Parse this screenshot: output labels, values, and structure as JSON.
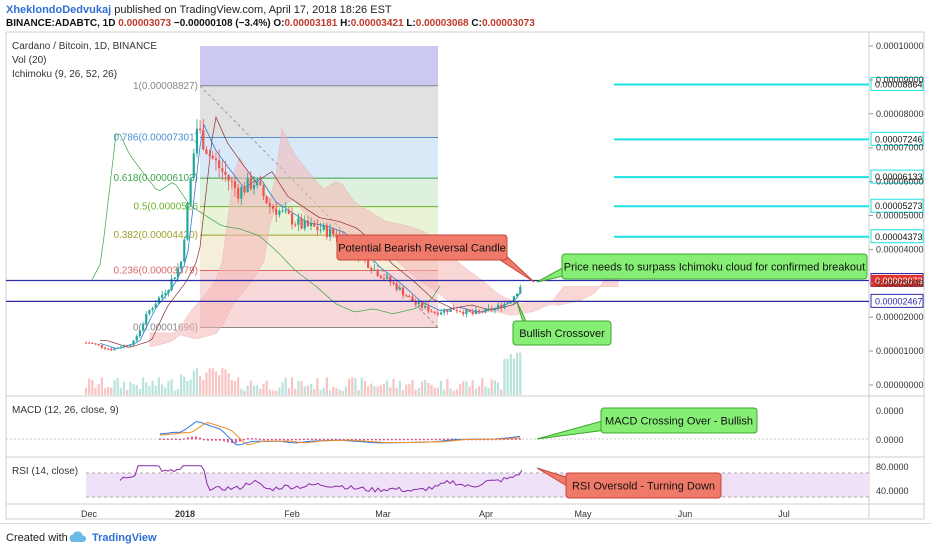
{
  "header": {
    "author": "XheklondoDedvukaj",
    "published": "published on TradingView.com, April 17, 2018 18:26 EST",
    "symbol_line": {
      "symbol": "BINANCE:ADABTC, 1D",
      "last": "0.00003073",
      "change": "−0.00000108 (−3.4%)",
      "o_label": "O:",
      "o": "0.00003181",
      "h_label": "H:",
      "h": "0.00003421",
      "l_label": "L:",
      "l": "0.00003068",
      "c_label": "C:",
      "c": "0.00003073"
    }
  },
  "legend": {
    "title": "Cardano / Bitcoin, 1D, BINANCE",
    "vol": "Vol (20)",
    "ichimoku": "Ichimoku (9, 26, 52, 26)",
    "macd": "MACD (12, 26, close, 9)",
    "rsi": "RSI (14, close)"
  },
  "chart_data": {
    "type": "candlestick",
    "x_axis": {
      "labels": [
        "Dec",
        "2018",
        "Feb",
        "Mar",
        "Apr",
        "May",
        "Jun",
        "Jul"
      ]
    },
    "price_axis": {
      "range": [
        0.0,
        0.0001
      ],
      "ticks": [
        "0.00010000",
        "0.00009000",
        "0.00008000",
        "0.00007000",
        "0.00006000",
        "0.00005000",
        "0.00004000",
        "0.00003000",
        "0.00002000",
        "0.00001000",
        "0.00000000"
      ]
    },
    "price_path": [
      [
        "2017-12-01",
        1.25e-05
      ],
      [
        "2017-12-08",
        1.05e-05
      ],
      [
        "2017-12-15",
        1.25e-05
      ],
      [
        "2017-12-20",
        2.2e-05
      ],
      [
        "2017-12-26",
        2.9e-05
      ],
      [
        "2017-12-30",
        3.6e-05
      ],
      [
        "2018-01-04",
        7.6e-05
      ],
      [
        "2018-01-08",
        6.8e-05
      ],
      [
        "2018-01-12",
        6.3e-05
      ],
      [
        "2018-01-17",
        5.7e-05
      ],
      [
        "2018-01-22",
        6e-05
      ],
      [
        "2018-01-27",
        5.3e-05
      ],
      [
        "2018-02-01",
        5e-05
      ],
      [
        "2018-02-06",
        4.7e-05
      ],
      [
        "2018-02-12",
        4.6e-05
      ],
      [
        "2018-02-18",
        4.4e-05
      ],
      [
        "2018-02-24",
        3.9e-05
      ],
      [
        "2018-03-01",
        3.4e-05
      ],
      [
        "2018-03-08",
        2.9e-05
      ],
      [
        "2018-03-14",
        2.4e-05
      ],
      [
        "2018-03-20",
        2.15e-05
      ],
      [
        "2018-03-26",
        2.25e-05
      ],
      [
        "2018-04-01",
        2.1e-05
      ],
      [
        "2018-04-08",
        2.25e-05
      ],
      [
        "2018-04-13",
        2.5e-05
      ],
      [
        "2018-04-17",
        3.07e-05
      ]
    ],
    "fibonacci": [
      {
        "level": "1",
        "price": 8.827e-05,
        "label": "1(0.00008827)"
      },
      {
        "level": "0.786",
        "price": 7.301e-05,
        "label": "0.786(0.00007301)"
      },
      {
        "level": "0.618",
        "price": 6.103e-05,
        "label": "0.618(0.00006103)"
      },
      {
        "level": "0.5",
        "price": 5.26e-05,
        "label": "0.5(0.0000526"
      },
      {
        "level": "0.382",
        "price": 4.42e-05,
        "label": "0.382(0.00004420)"
      },
      {
        "level": "0.236",
        "price": 3.379e-05,
        "label": "0.236(0.00003379)"
      },
      {
        "level": "0",
        "price": 1.696e-05,
        "label": "0(0.00001696)"
      }
    ],
    "horizontal_levels": [
      {
        "price": 3.083e-05,
        "label": "0.00003083",
        "color": "#2a2aa8"
      },
      {
        "price": 2.467e-05,
        "label": "0.00002467",
        "color": "#2a2aa8"
      }
    ],
    "target_levels": [
      {
        "price": 8.864e-05,
        "label": "0.00008864"
      },
      {
        "price": 7.246e-05,
        "label": "0.00007246"
      },
      {
        "price": 6.133e-05,
        "label": "0.00006133"
      },
      {
        "price": 5.273e-05,
        "label": "0.00005273"
      },
      {
        "price": 4.373e-05,
        "label": "0.00004373"
      }
    ],
    "last_price_label": {
      "price": 3.073e-05,
      "label": "0.00003073",
      "color": "#e0312b"
    },
    "macd": {
      "ticks": [
        "0.0000",
        "0.0000"
      ],
      "line_color": "#2f7bd6",
      "signal_color": "#f08c2a",
      "hist_color": "#e0307a"
    },
    "rsi": {
      "ticks": [
        "80.0000",
        "40.0000"
      ],
      "band": [
        30,
        70
      ],
      "line_color": "#8a2aa8"
    }
  },
  "annotations": {
    "bearish": "Potential Bearish Reversal Candle",
    "breakout": "Price needs to surpass Ichimoku cloud for confirmed breakout",
    "bullish_cross": "Bullish Crossover",
    "macd_cross": "MACD Crossing Over - Bullish",
    "rsi_oversold": "RSI Oversold - Turning Down"
  },
  "footer": {
    "created": "Created with",
    "brand": "TradingView"
  },
  "colors": {
    "accent": "#2f6fd6",
    "green_candle": "#26a69a",
    "red_candle": "#ef5350",
    "cyan_level": "#19e3e3"
  }
}
